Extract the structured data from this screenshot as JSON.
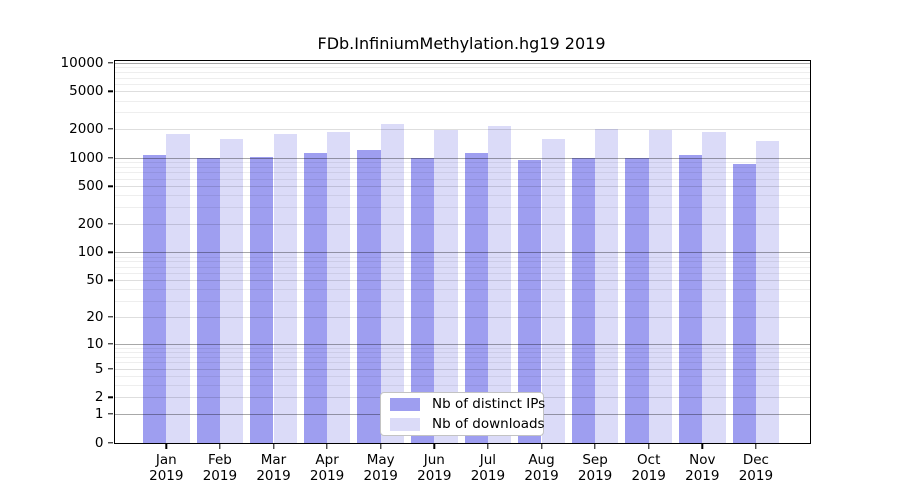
{
  "figure_title": "FDb.InfiniumMethylation.hg19 2019",
  "chart_data": {
    "type": "bar",
    "title": "FDb.InfiniumMethylation.hg19 2019",
    "categories": [
      "Jan",
      "Feb",
      "Mar",
      "Apr",
      "May",
      "Jun",
      "Jul",
      "Aug",
      "Sep",
      "Oct",
      "Nov",
      "Dec"
    ],
    "category_year": "2019",
    "series": [
      {
        "name": "Nb of distinct IPs",
        "color": "#9e9ef0",
        "values": [
          1065,
          1000,
          1025,
          1120,
          1195,
          1005,
          1130,
          945,
          985,
          1000,
          1060,
          850
        ]
      },
      {
        "name": "Nb of downloads",
        "color": "#dbdbf8",
        "values": [
          1760,
          1590,
          1790,
          1860,
          2280,
          1940,
          2150,
          1560,
          1990,
          1950,
          1860,
          1500
        ]
      }
    ],
    "y_axis": {
      "scale": "log1p",
      "min": 0,
      "max": 10570,
      "labeled_ticks": [
        0,
        1,
        2,
        5,
        10,
        20,
        50,
        100,
        200,
        500,
        1000,
        2000,
        5000,
        10000
      ],
      "minor_ticks": [
        3,
        4,
        6,
        7,
        8,
        9,
        30,
        40,
        60,
        70,
        80,
        90,
        300,
        400,
        600,
        700,
        800,
        900,
        3000,
        4000,
        6000,
        7000,
        8000,
        9000
      ]
    },
    "x_axis": {
      "tick_position": "group-center"
    },
    "grid": true,
    "legend": {
      "position": "bottom-center",
      "entries": [
        "Nb of distinct IPs",
        "Nb of downloads"
      ]
    },
    "colors": {
      "bar_ips": "#9e9ef0",
      "bar_downloads": "#dbdbf8",
      "axis": "#000000"
    }
  }
}
